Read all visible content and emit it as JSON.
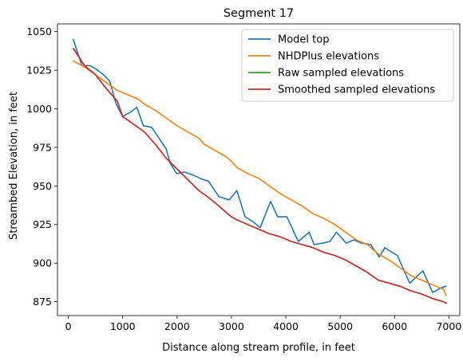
{
  "chart_data": {
    "type": "line",
    "title": "Segment 17",
    "xlabel": "Distance along stream profile, in feet",
    "ylabel": "Streambed Elevation, in feet",
    "xlim": [
      -200,
      7200
    ],
    "ylim": [
      866,
      1055
    ],
    "xticks": [
      0,
      1000,
      2000,
      3000,
      4000,
      5000,
      6000,
      7000
    ],
    "yticks": [
      875,
      900,
      925,
      950,
      975,
      1000,
      1025,
      1050
    ],
    "grid": false,
    "legend_position": "top-right",
    "series": [
      {
        "name": "Model top",
        "color": "#1f77b4",
        "x": [
          90,
          250,
          400,
          500,
          650,
          760,
          880,
          1000,
          1150,
          1260,
          1380,
          1530,
          1650,
          1800,
          1870,
          1990,
          2130,
          2300,
          2420,
          2580,
          2770,
          2960,
          3100,
          3250,
          3390,
          3530,
          3720,
          3850,
          4020,
          4230,
          4430,
          4520,
          4680,
          4810,
          4930,
          5110,
          5250,
          5390,
          5560,
          5720,
          5820,
          6050,
          6280,
          6520,
          6700,
          6860,
          6950
        ],
        "y": [
          1045,
          1028,
          1028,
          1026,
          1022,
          1018,
          1003,
          995,
          998,
          1001,
          989,
          988,
          982,
          974,
          965,
          958,
          959,
          957,
          955,
          953,
          943,
          941,
          947,
          930,
          927,
          923,
          940,
          930,
          930,
          914,
          920,
          912,
          913,
          914,
          920,
          913,
          915,
          913,
          912,
          904,
          910,
          905,
          887,
          895,
          881,
          884,
          885
        ]
      },
      {
        "name": "NHDPlus elevations",
        "color": "#ff7f0e",
        "x": [
          90,
          300,
          500,
          700,
          900,
          1100,
          1300,
          1400,
          1600,
          1800,
          2000,
          2200,
          2400,
          2500,
          2700,
          2900,
          3000,
          3100,
          3300,
          3500,
          3700,
          3900,
          4100,
          4300,
          4500,
          4700,
          4900,
          5100,
          5300,
          5500,
          5700,
          5900,
          6100,
          6300,
          6500,
          6700,
          6900,
          6950
        ],
        "y": [
          1031,
          1027,
          1022,
          1017,
          1012,
          1009,
          1006,
          1003,
          999,
          994,
          989,
          985,
          981,
          977,
          973,
          969,
          966,
          962,
          958,
          955,
          950,
          945,
          941,
          937,
          932,
          929,
          925,
          920,
          915,
          912,
          906,
          902,
          897,
          892,
          889,
          886,
          883,
          879
        ]
      },
      {
        "name": "Raw sampled elevations",
        "color": "#2ca02c",
        "x": [
          90,
          300,
          500,
          700,
          900,
          1000,
          1200,
          1400,
          1600,
          1800,
          2000,
          2200,
          2400,
          2600,
          2800,
          3000,
          3100,
          3300,
          3500,
          3700,
          3900,
          4100,
          4300,
          4500,
          4700,
          4900,
          5100,
          5300,
          5500,
          5700,
          5900,
          6100,
          6300,
          6500,
          6700,
          6900,
          6950
        ],
        "y": [
          1039,
          1028,
          1022,
          1013,
          1005,
          995,
          990,
          985,
          977,
          968,
          961,
          954,
          947,
          942,
          936,
          930,
          928,
          925,
          922,
          919,
          917,
          914,
          912,
          910,
          907,
          905,
          902,
          898,
          894,
          889,
          887,
          885,
          882,
          880,
          877,
          875,
          874
        ]
      },
      {
        "name": "Smoothed sampled elevations",
        "color": "#d62728",
        "x": [
          90,
          300,
          500,
          700,
          900,
          1000,
          1200,
          1400,
          1600,
          1800,
          2000,
          2200,
          2400,
          2600,
          2800,
          3000,
          3100,
          3300,
          3500,
          3700,
          3900,
          4100,
          4300,
          4500,
          4700,
          4900,
          5100,
          5300,
          5500,
          5700,
          5900,
          6100,
          6300,
          6500,
          6700,
          6900,
          6950
        ],
        "y": [
          1039,
          1028,
          1022,
          1013,
          1005,
          995,
          990,
          985,
          977,
          968,
          961,
          954,
          947,
          942,
          936,
          930,
          928,
          925,
          922,
          919,
          917,
          914,
          912,
          910,
          907,
          905,
          902,
          898,
          894,
          889,
          887,
          885,
          882,
          880,
          877,
          875,
          874
        ]
      }
    ]
  }
}
